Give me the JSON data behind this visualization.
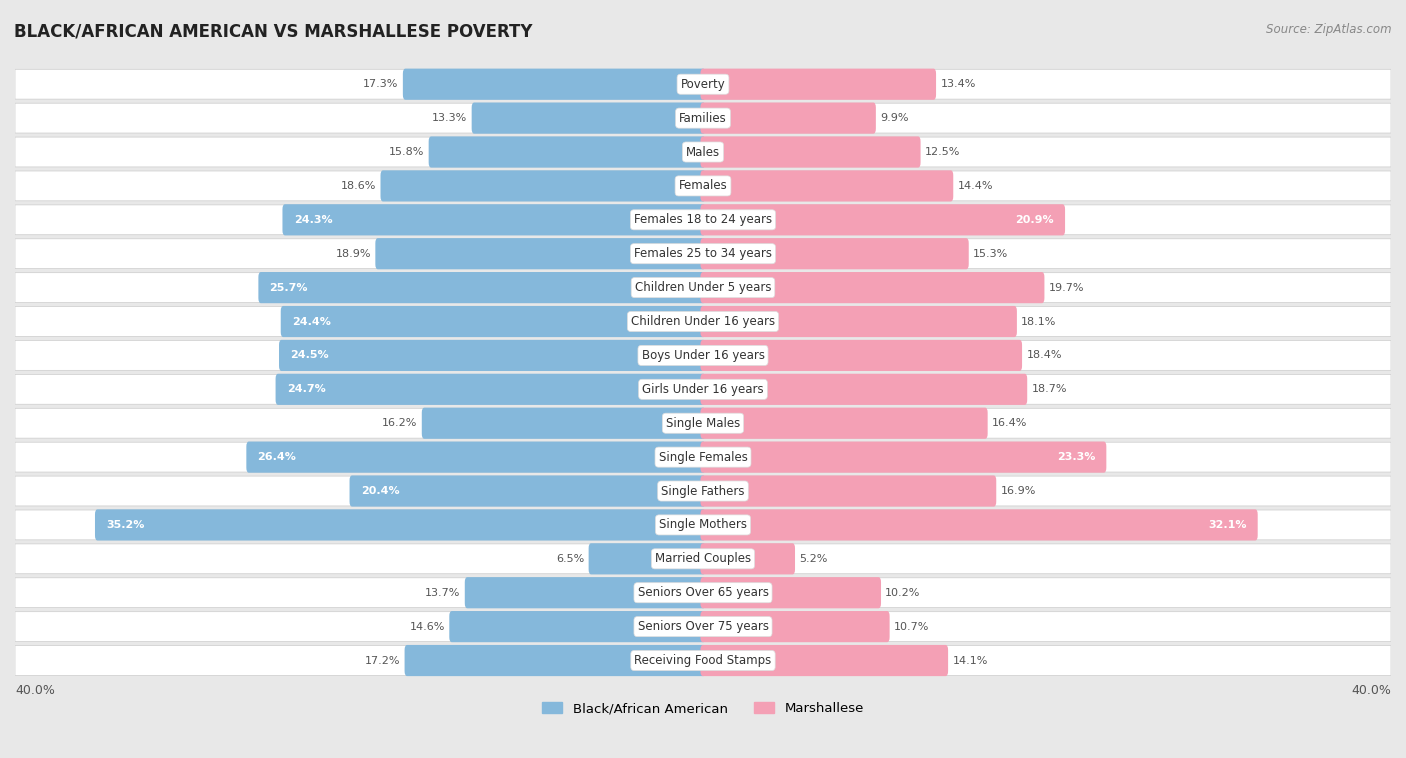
{
  "title": "BLACK/AFRICAN AMERICAN VS MARSHALLESE POVERTY",
  "source": "Source: ZipAtlas.com",
  "categories": [
    "Poverty",
    "Families",
    "Males",
    "Females",
    "Females 18 to 24 years",
    "Females 25 to 34 years",
    "Children Under 5 years",
    "Children Under 16 years",
    "Boys Under 16 years",
    "Girls Under 16 years",
    "Single Males",
    "Single Females",
    "Single Fathers",
    "Single Mothers",
    "Married Couples",
    "Seniors Over 65 years",
    "Seniors Over 75 years",
    "Receiving Food Stamps"
  ],
  "black_values": [
    17.3,
    13.3,
    15.8,
    18.6,
    24.3,
    18.9,
    25.7,
    24.4,
    24.5,
    24.7,
    16.2,
    26.4,
    20.4,
    35.2,
    6.5,
    13.7,
    14.6,
    17.2
  ],
  "marshallese_values": [
    13.4,
    9.9,
    12.5,
    14.4,
    20.9,
    15.3,
    19.7,
    18.1,
    18.4,
    18.7,
    16.4,
    23.3,
    16.9,
    32.1,
    5.2,
    10.2,
    10.7,
    14.1
  ],
  "black_color": "#85b8db",
  "marshallese_color": "#f4a0b5",
  "row_bg_color": "#ffffff",
  "outer_bg_color": "#e8e8e8",
  "axis_limit": 40.0,
  "bar_height": 0.62,
  "label_fontsize": 8.5,
  "value_fontsize": 8.0,
  "legend_labels": [
    "Black/African American",
    "Marshallese"
  ],
  "white_label_threshold": 20.0
}
